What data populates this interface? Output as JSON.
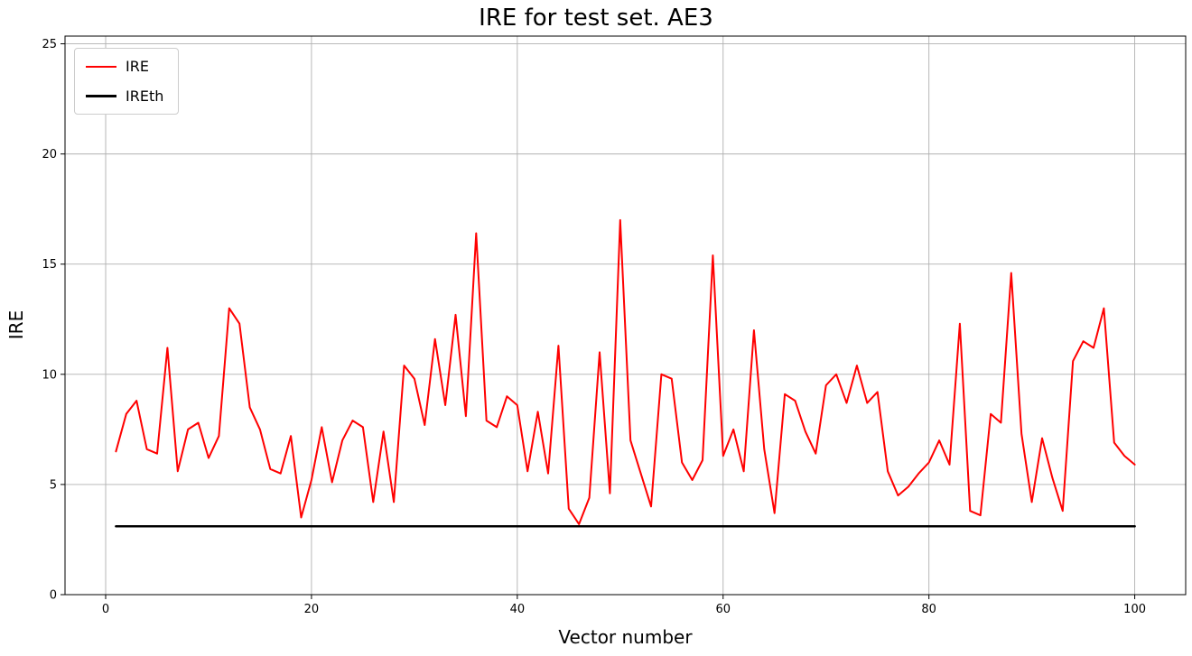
{
  "chart_data": {
    "type": "line",
    "title": "IRE for test set. AE3",
    "xlabel": "Vector number",
    "ylabel": "IRE",
    "x_range": [
      1,
      100
    ],
    "xlim": [
      -3.95,
      104.95
    ],
    "ylim": [
      0,
      25.35
    ],
    "xticks": [
      0,
      20,
      40,
      60,
      80,
      100
    ],
    "yticks": [
      0,
      5,
      10,
      15,
      20,
      25
    ],
    "grid": true,
    "legend_position": "upper left",
    "colors": {
      "grid": "#b0b0b0",
      "axis": "#000000",
      "background": "#ffffff"
    },
    "series": [
      {
        "name": "IRE",
        "color": "#ff0000",
        "width": 2,
        "values": [
          6.5,
          8.2,
          8.8,
          6.6,
          6.4,
          11.2,
          5.6,
          7.5,
          7.8,
          6.2,
          7.2,
          13.0,
          12.3,
          8.5,
          7.5,
          5.7,
          5.5,
          7.2,
          3.5,
          5.2,
          7.6,
          5.1,
          7.0,
          7.9,
          7.6,
          4.2,
          7.4,
          4.2,
          10.4,
          9.8,
          7.7,
          11.6,
          8.6,
          12.7,
          8.1,
          16.4,
          7.9,
          7.6,
          9.0,
          8.6,
          5.6,
          8.3,
          5.5,
          11.3,
          3.9,
          3.2,
          4.4,
          11.0,
          4.6,
          17.0,
          7.0,
          5.5,
          4.0,
          10.0,
          9.8,
          6.0,
          5.2,
          6.1,
          15.4,
          6.3,
          7.5,
          5.6,
          12.0,
          6.6,
          3.7,
          9.1,
          8.8,
          7.4,
          6.4,
          9.5,
          10.0,
          8.7,
          10.4,
          8.7,
          9.2,
          5.6,
          4.5,
          4.9,
          5.5,
          6.0,
          7.0,
          5.9,
          12.3,
          3.8,
          3.6,
          8.2,
          7.8,
          14.6,
          7.3,
          4.2,
          7.1,
          5.3,
          3.8,
          10.6,
          11.5,
          11.2,
          13.0,
          6.9,
          6.3,
          5.9
        ]
      },
      {
        "name": "IREth",
        "color": "#000000",
        "width": 2.5,
        "constant": 3.1
      }
    ]
  }
}
